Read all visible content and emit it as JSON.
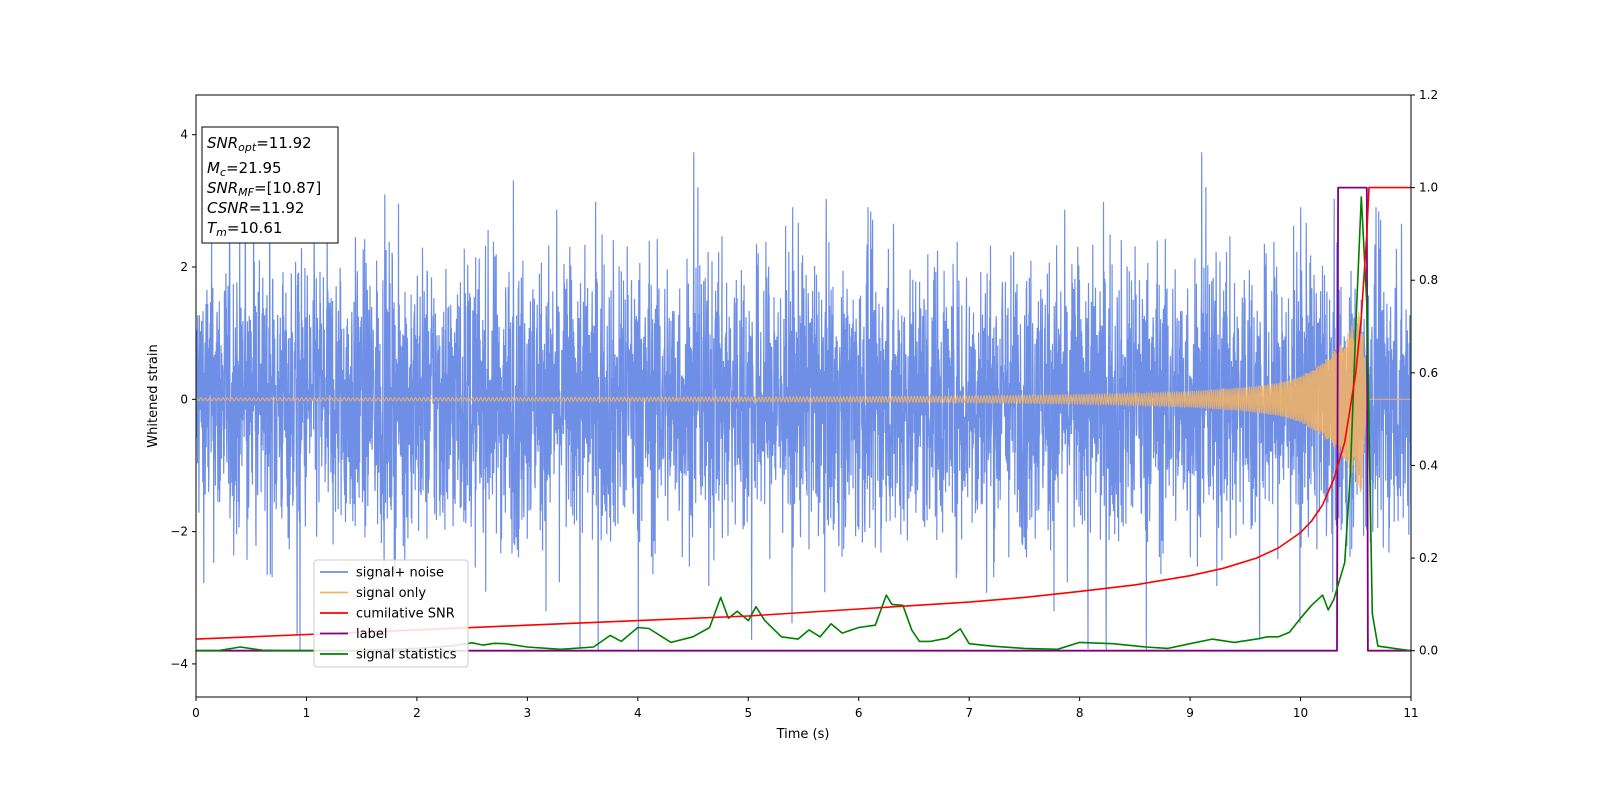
{
  "chart_data": {
    "type": "line",
    "xlabel": "Time (s)",
    "ylabel": "Whitened strain",
    "xlim": [
      0,
      11
    ],
    "ylim_left": [
      -4.5,
      4.6
    ],
    "ylim_right": [
      -0.1,
      1.2
    ],
    "x_ticks": [
      0,
      1,
      2,
      3,
      4,
      5,
      6,
      7,
      8,
      9,
      10,
      11
    ],
    "y_ticks_left": [
      -4,
      -2,
      0,
      2,
      4
    ],
    "y_ticks_right": [
      "0.0",
      "0.2",
      "0.4",
      "0.6",
      "0.8",
      "1.0",
      "1.2"
    ],
    "grid": false,
    "legend_position": "lower-left",
    "legend": [
      {
        "key": "noise",
        "label": "signal+ noise",
        "color": "#6f8fe6"
      },
      {
        "key": "signal",
        "label": "signal only",
        "color": "#f5b461"
      },
      {
        "key": "csnr",
        "label": "cumilative SNR",
        "color": "#ff0000"
      },
      {
        "key": "label",
        "label": "label",
        "color": "#800080"
      },
      {
        "key": "stat",
        "label": "signal statistics",
        "color": "#008000"
      }
    ],
    "series": [
      {
        "name": "signal+ noise",
        "axis": "left",
        "description_values": {
          "baseline_std": 1.0,
          "max_value": 4.2,
          "min_value": -3.8
        }
      },
      {
        "name": "signal only",
        "axis": "left",
        "amplitude_envelope": {
          "x": [
            0,
            2,
            4,
            6,
            7,
            8,
            8.5,
            9,
            9.5,
            9.8,
            10.0,
            10.2,
            10.4,
            10.5,
            10.55,
            10.6,
            11
          ],
          "y": [
            0.02,
            0.025,
            0.03,
            0.04,
            0.05,
            0.07,
            0.09,
            0.12,
            0.18,
            0.25,
            0.35,
            0.55,
            0.9,
            1.25,
            1.45,
            0,
            0
          ]
        }
      },
      {
        "name": "cumilative SNR",
        "axis": "right",
        "x": [
          0,
          1,
          2,
          3,
          4,
          5,
          6,
          7,
          7.5,
          8,
          8.5,
          9,
          9.3,
          9.6,
          9.8,
          10.0,
          10.1,
          10.2,
          10.3,
          10.4,
          10.5,
          10.55,
          10.6,
          10.62,
          11
        ],
        "y": [
          0.025,
          0.035,
          0.045,
          0.055,
          0.065,
          0.075,
          0.09,
          0.105,
          0.115,
          0.128,
          0.142,
          0.162,
          0.178,
          0.2,
          0.222,
          0.255,
          0.28,
          0.315,
          0.37,
          0.45,
          0.6,
          0.72,
          0.9,
          1.0,
          1.0
        ]
      },
      {
        "name": "label",
        "axis": "right",
        "x": [
          0,
          10.33,
          10.34,
          10.6,
          10.61,
          11
        ],
        "y": [
          0,
          0,
          1,
          1,
          0,
          0
        ]
      },
      {
        "name": "signal statistics",
        "axis": "right",
        "x": [
          0,
          0.2,
          0.4,
          0.6,
          0.8,
          1.0,
          1.2,
          1.5,
          2.0,
          2.3,
          2.5,
          2.6,
          2.7,
          2.8,
          3.0,
          3.3,
          3.6,
          3.75,
          3.85,
          4.0,
          4.1,
          4.3,
          4.5,
          4.65,
          4.75,
          4.82,
          4.9,
          5.0,
          5.07,
          5.15,
          5.3,
          5.45,
          5.55,
          5.65,
          5.75,
          5.85,
          6.0,
          6.15,
          6.25,
          6.3,
          6.4,
          6.48,
          6.55,
          6.65,
          6.8,
          6.92,
          7.0,
          7.2,
          7.5,
          7.8,
          8.0,
          8.3,
          8.6,
          8.8,
          9.0,
          9.2,
          9.4,
          9.6,
          9.7,
          9.8,
          9.9,
          10.0,
          10.1,
          10.2,
          10.25,
          10.3,
          10.4,
          10.45,
          10.5,
          10.55,
          10.6,
          10.65,
          10.7,
          11
        ],
        "y": [
          0,
          0.0,
          0.008,
          0.001,
          0.0,
          0.0,
          0.0,
          0.001,
          0.005,
          0.01,
          0.017,
          0.012,
          0.016,
          0.015,
          0.008,
          0.003,
          0.008,
          0.033,
          0.02,
          0.05,
          0.048,
          0.018,
          0.03,
          0.05,
          0.115,
          0.07,
          0.085,
          0.065,
          0.095,
          0.065,
          0.03,
          0.025,
          0.045,
          0.03,
          0.058,
          0.038,
          0.05,
          0.055,
          0.12,
          0.1,
          0.098,
          0.045,
          0.02,
          0.02,
          0.027,
          0.047,
          0.015,
          0.01,
          0.005,
          0.003,
          0.018,
          0.015,
          0.008,
          0.005,
          0.015,
          0.025,
          0.018,
          0.025,
          0.03,
          0.03,
          0.04,
          0.07,
          0.098,
          0.12,
          0.088,
          0.11,
          0.19,
          0.38,
          0.7,
          0.98,
          0.75,
          0.08,
          0.01,
          0.0
        ]
      }
    ]
  },
  "info_box": {
    "snr_opt_label": "SNR",
    "snr_opt_sub": "opt",
    "snr_opt_value": "=11.92",
    "mc_label": "M",
    "mc_sub": "c",
    "mc_value": "=21.95",
    "snr_mf_label": "SNR",
    "snr_mf_sub": "MF",
    "snr_mf_value": "=[10.87]",
    "csnr_label": "CSNR",
    "csnr_value": "=11.92",
    "tm_label": "T",
    "tm_sub": "m",
    "tm_value": "=10.61"
  }
}
